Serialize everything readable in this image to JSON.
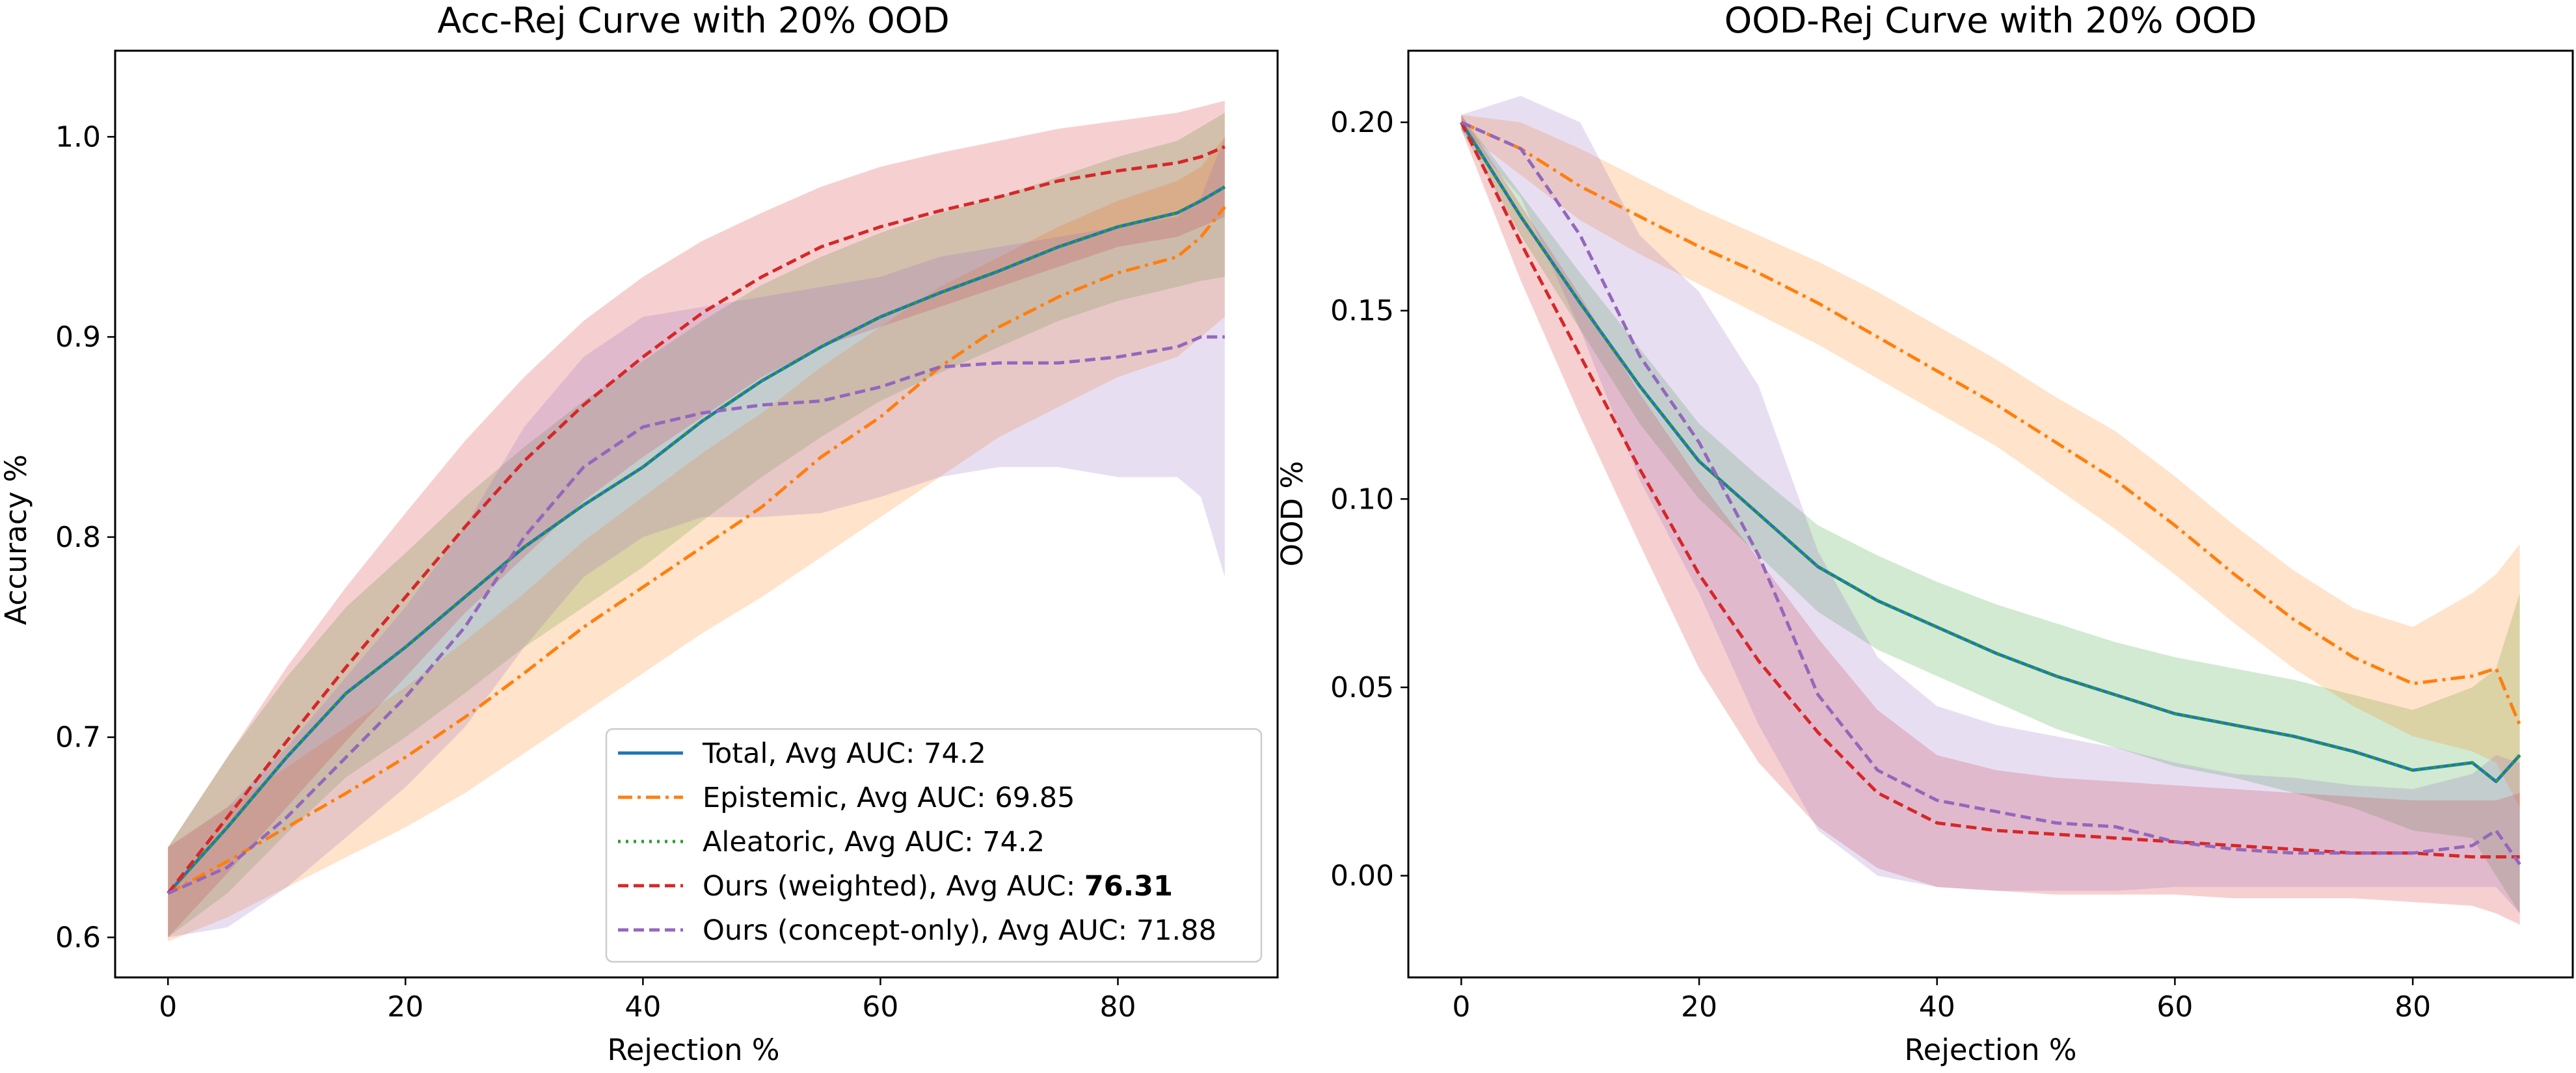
{
  "chart_data": [
    {
      "type": "line",
      "title": "Acc-Rej Curve with 20% OOD",
      "xlabel": "Rejection %",
      "ylabel": "Accuracy %",
      "xlim": [
        -4.45,
        93.45
      ],
      "ylim": [
        0.58,
        1.043
      ],
      "xticks": [
        0,
        20,
        40,
        60,
        80
      ],
      "yticks": [
        0.6,
        0.7,
        0.8,
        0.9,
        1.0
      ],
      "xtick_labels": [
        "0",
        "20",
        "40",
        "60",
        "80"
      ],
      "ytick_labels": [
        "0.6",
        "0.7",
        "0.8",
        "0.9",
        "1.0"
      ],
      "grid": false,
      "legend_position": "lower-right",
      "x": [
        0,
        5,
        10,
        15,
        20,
        25,
        30,
        35,
        40,
        45,
        50,
        55,
        60,
        65,
        70,
        75,
        80,
        85,
        87,
        89
      ],
      "series": [
        {
          "name": "Total",
          "auc_prefix": ", Avg AUC: ",
          "auc": "74.2",
          "auc_bold": false,
          "color": "#1f77b4",
          "band_color": "#2ca02c",
          "dash": "solid",
          "values": [
            0.622,
            0.655,
            0.69,
            0.722,
            0.745,
            0.77,
            0.795,
            0.816,
            0.835,
            0.858,
            0.878,
            0.895,
            0.91,
            0.922,
            0.933,
            0.945,
            0.955,
            0.962,
            0.968,
            0.975
          ],
          "lower": [
            0.6,
            0.622,
            0.652,
            0.68,
            0.7,
            0.722,
            0.745,
            0.765,
            0.785,
            0.808,
            0.83,
            0.85,
            0.868,
            0.882,
            0.895,
            0.908,
            0.918,
            0.925,
            0.928,
            0.93
          ],
          "upper": [
            0.645,
            0.69,
            0.73,
            0.765,
            0.792,
            0.82,
            0.845,
            0.868,
            0.888,
            0.908,
            0.926,
            0.94,
            0.952,
            0.962,
            0.97,
            0.98,
            0.99,
            0.998,
            1.005,
            1.012
          ]
        },
        {
          "name": "Epistemic",
          "auc_prefix": ", Avg AUC: ",
          "auc": "69.85",
          "auc_bold": false,
          "color": "#ff7f0e",
          "band_color": "#ff7f0e",
          "dash": "dashdot",
          "values": [
            0.622,
            0.638,
            0.655,
            0.672,
            0.69,
            0.71,
            0.732,
            0.755,
            0.775,
            0.795,
            0.815,
            0.84,
            0.86,
            0.885,
            0.905,
            0.92,
            0.932,
            0.94,
            0.95,
            0.965
          ],
          "lower": [
            0.598,
            0.61,
            0.625,
            0.64,
            0.655,
            0.672,
            0.692,
            0.712,
            0.732,
            0.752,
            0.77,
            0.79,
            0.81,
            0.83,
            0.85,
            0.865,
            0.88,
            0.89,
            0.9,
            0.91
          ],
          "upper": [
            0.645,
            0.665,
            0.685,
            0.705,
            0.725,
            0.748,
            0.772,
            0.798,
            0.82,
            0.842,
            0.862,
            0.885,
            0.905,
            0.925,
            0.94,
            0.955,
            0.968,
            0.978,
            0.985,
            1.0
          ]
        },
        {
          "name": "Aleatoric",
          "auc_prefix": ", Avg AUC: ",
          "auc": "74.2",
          "auc_bold": false,
          "color": "#2ca02c",
          "band_color": "#2ca02c",
          "dash": "dotted",
          "values": [
            0.622,
            0.655,
            0.69,
            0.722,
            0.745,
            0.77,
            0.795,
            0.816,
            0.835,
            0.858,
            0.878,
            0.895,
            0.91,
            0.922,
            0.933,
            0.945,
            0.955,
            0.962,
            0.968,
            0.975
          ]
        },
        {
          "name": "Ours (weighted)",
          "auc_prefix": ", Avg AUC: ",
          "auc": "76.31",
          "auc_bold": true,
          "color": "#d62728",
          "band_color": "#d62728",
          "dash": "dashed",
          "values": [
            0.622,
            0.66,
            0.698,
            0.735,
            0.77,
            0.805,
            0.838,
            0.866,
            0.89,
            0.912,
            0.93,
            0.945,
            0.955,
            0.963,
            0.97,
            0.978,
            0.983,
            0.987,
            0.99,
            0.995
          ],
          "lower": [
            0.6,
            0.632,
            0.665,
            0.698,
            0.73,
            0.762,
            0.79,
            0.818,
            0.84,
            0.86,
            0.88,
            0.895,
            0.905,
            0.915,
            0.925,
            0.935,
            0.945,
            0.95,
            0.955,
            0.96
          ],
          "upper": [
            0.645,
            0.69,
            0.735,
            0.775,
            0.812,
            0.848,
            0.88,
            0.908,
            0.93,
            0.948,
            0.962,
            0.975,
            0.985,
            0.992,
            0.998,
            1.004,
            1.008,
            1.012,
            1.015,
            1.018
          ]
        },
        {
          "name": "Ours (concept-only)",
          "auc_prefix": ", Avg AUC: ",
          "auc": "71.88",
          "auc_bold": false,
          "color": "#9467bd",
          "band_color": "#9467bd",
          "dash": "dashed",
          "values": [
            0.622,
            0.635,
            0.66,
            0.69,
            0.72,
            0.755,
            0.8,
            0.835,
            0.855,
            0.862,
            0.866,
            0.868,
            0.875,
            0.885,
            0.887,
            0.887,
            0.89,
            0.895,
            0.9,
            0.9
          ],
          "lower": [
            0.6,
            0.605,
            0.625,
            0.65,
            0.675,
            0.705,
            0.745,
            0.78,
            0.8,
            0.81,
            0.81,
            0.812,
            0.82,
            0.83,
            0.835,
            0.835,
            0.83,
            0.83,
            0.82,
            0.78
          ],
          "upper": [
            0.645,
            0.665,
            0.695,
            0.73,
            0.765,
            0.805,
            0.855,
            0.89,
            0.91,
            0.915,
            0.92,
            0.925,
            0.93,
            0.94,
            0.945,
            0.95,
            0.955,
            0.96,
            0.97,
            1.0
          ]
        }
      ]
    },
    {
      "type": "line",
      "title": "OOD-Rej Curve with 20% OOD",
      "xlabel": "Rejection %",
      "ylabel": "OOD %",
      "xlim": [
        -4.45,
        93.45
      ],
      "ylim": [
        -0.027,
        0.219
      ],
      "xticks": [
        0,
        20,
        40,
        60,
        80
      ],
      "yticks": [
        0.0,
        0.05,
        0.1,
        0.15,
        0.2
      ],
      "xtick_labels": [
        "0",
        "20",
        "40",
        "60",
        "80"
      ],
      "ytick_labels": [
        "0.00",
        "0.05",
        "0.10",
        "0.15",
        "0.20"
      ],
      "grid": false,
      "x": [
        0,
        5,
        10,
        15,
        20,
        25,
        30,
        35,
        40,
        45,
        50,
        55,
        60,
        65,
        70,
        75,
        80,
        85,
        87,
        89
      ],
      "series": [
        {
          "name": "Total",
          "color": "#1f77b4",
          "band_color": "#2ca02c",
          "dash": "solid",
          "values": [
            0.2,
            0.175,
            0.152,
            0.13,
            0.11,
            0.096,
            0.082,
            0.073,
            0.066,
            0.059,
            0.053,
            0.048,
            0.043,
            0.04,
            0.037,
            0.033,
            0.028,
            0.03,
            0.025,
            0.032
          ],
          "lower": [
            0.198,
            0.17,
            0.145,
            0.12,
            0.1,
            0.085,
            0.07,
            0.06,
            0.053,
            0.046,
            0.039,
            0.034,
            0.029,
            0.026,
            0.022,
            0.018,
            0.012,
            0.01,
            0.0,
            -0.01
          ],
          "upper": [
            0.202,
            0.181,
            0.16,
            0.14,
            0.12,
            0.106,
            0.093,
            0.085,
            0.078,
            0.072,
            0.067,
            0.062,
            0.058,
            0.055,
            0.052,
            0.048,
            0.044,
            0.05,
            0.055,
            0.075
          ]
        },
        {
          "name": "Epistemic",
          "color": "#ff7f0e",
          "band_color": "#ff7f0e",
          "dash": "dashdot",
          "values": [
            0.2,
            0.193,
            0.183,
            0.175,
            0.167,
            0.16,
            0.152,
            0.143,
            0.134,
            0.125,
            0.115,
            0.105,
            0.093,
            0.08,
            0.068,
            0.058,
            0.051,
            0.053,
            0.055,
            0.04
          ],
          "lower": [
            0.198,
            0.186,
            0.174,
            0.165,
            0.157,
            0.149,
            0.141,
            0.132,
            0.123,
            0.114,
            0.103,
            0.092,
            0.08,
            0.067,
            0.055,
            0.045,
            0.037,
            0.033,
            0.03,
            0.018
          ],
          "upper": [
            0.202,
            0.2,
            0.193,
            0.185,
            0.177,
            0.17,
            0.163,
            0.155,
            0.146,
            0.137,
            0.127,
            0.118,
            0.106,
            0.093,
            0.081,
            0.071,
            0.066,
            0.075,
            0.08,
            0.088
          ]
        },
        {
          "name": "Aleatoric",
          "color": "#2ca02c",
          "band_color": "#2ca02c",
          "dash": "dotted",
          "values": [
            0.2,
            0.175,
            0.152,
            0.13,
            0.11,
            0.096,
            0.082,
            0.073,
            0.066,
            0.059,
            0.053,
            0.048,
            0.043,
            0.04,
            0.037,
            0.033,
            0.028,
            0.03,
            0.025,
            0.032
          ]
        },
        {
          "name": "Ours (weighted)",
          "color": "#d62728",
          "band_color": "#d62728",
          "dash": "dashed",
          "values": [
            0.2,
            0.168,
            0.138,
            0.108,
            0.08,
            0.057,
            0.038,
            0.022,
            0.014,
            0.012,
            0.011,
            0.01,
            0.009,
            0.008,
            0.007,
            0.006,
            0.006,
            0.005,
            0.005,
            0.005
          ],
          "lower": [
            0.198,
            0.158,
            0.122,
            0.088,
            0.055,
            0.03,
            0.013,
            0.002,
            -0.003,
            -0.004,
            -0.005,
            -0.005,
            -0.005,
            -0.006,
            -0.006,
            -0.006,
            -0.007,
            -0.008,
            -0.01,
            -0.013
          ],
          "upper": [
            0.202,
            0.178,
            0.154,
            0.128,
            0.105,
            0.084,
            0.063,
            0.044,
            0.032,
            0.028,
            0.026,
            0.025,
            0.024,
            0.023,
            0.022,
            0.021,
            0.02,
            0.02,
            0.02,
            0.022
          ]
        },
        {
          "name": "Ours (concept-only)",
          "color": "#9467bd",
          "band_color": "#9467bd",
          "dash": "dashed",
          "values": [
            0.2,
            0.193,
            0.17,
            0.138,
            0.115,
            0.085,
            0.048,
            0.028,
            0.02,
            0.017,
            0.014,
            0.013,
            0.009,
            0.007,
            0.006,
            0.006,
            0.006,
            0.008,
            0.012,
            0.003
          ],
          "lower": [
            0.198,
            0.18,
            0.145,
            0.105,
            0.075,
            0.04,
            0.012,
            0.0,
            -0.003,
            -0.004,
            -0.004,
            -0.004,
            -0.003,
            -0.003,
            -0.003,
            -0.003,
            -0.003,
            -0.003,
            -0.003,
            -0.01
          ],
          "upper": [
            0.202,
            0.207,
            0.2,
            0.17,
            0.155,
            0.13,
            0.086,
            0.058,
            0.045,
            0.04,
            0.037,
            0.034,
            0.03,
            0.027,
            0.026,
            0.024,
            0.023,
            0.027,
            0.032,
            0.03
          ]
        }
      ]
    }
  ]
}
